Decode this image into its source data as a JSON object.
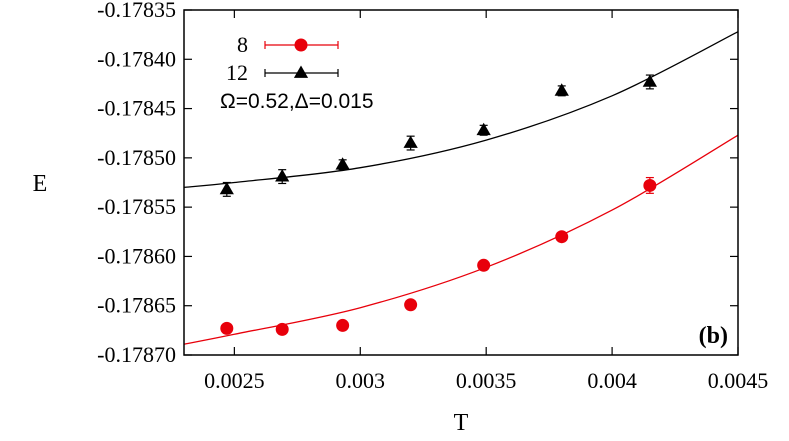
{
  "chart_data": {
    "type": "scatter",
    "xlabel": "T",
    "ylabel": "E",
    "xlim": [
      0.0023,
      0.0045
    ],
    "ylim": [
      -0.1787,
      -0.17835
    ],
    "x_ticks": [
      "0.0025",
      "0.003",
      "0.0035",
      "0.004",
      "0.0045"
    ],
    "x_tick_values": [
      0.0025,
      0.003,
      0.0035,
      0.004,
      0.0045
    ],
    "y_ticks": [
      "-0.17835",
      "-0.17840",
      "-0.17845",
      "-0.17850",
      "-0.17855",
      "-0.17860",
      "-0.17865",
      "-0.17870"
    ],
    "y_tick_values": [
      -0.17835,
      -0.1784,
      -0.17845,
      -0.1785,
      -0.17855,
      -0.1786,
      -0.17865,
      -0.1787
    ],
    "grid": false,
    "legend_position": "top-left",
    "annotation": "Ω=0.52,Δ=0.015",
    "panel_label": "(b)",
    "series": [
      {
        "name": "8",
        "marker": "circle",
        "color": "#e8000b",
        "x": [
          0.00247,
          0.00269,
          0.00293,
          0.0032,
          0.00349,
          0.0038,
          0.00415
        ],
        "y": [
          -0.178673,
          -0.178674,
          -0.17867,
          -0.178649,
          -0.178609,
          -0.17858,
          -0.178528
        ],
        "yerr": [
          3e-06,
          3e-06,
          3e-06,
          3e-06,
          3e-06,
          3e-06,
          8e-06
        ]
      },
      {
        "name": "12",
        "marker": "triangle",
        "color": "#000000",
        "x": [
          0.00247,
          0.00269,
          0.00293,
          0.0032,
          0.00349,
          0.0038,
          0.00415
        ],
        "y": [
          -0.178532,
          -0.178519,
          -0.178507,
          -0.178485,
          -0.178472,
          -0.178432,
          -0.178423
        ],
        "yerr": [
          7e-06,
          7e-06,
          5e-06,
          7e-06,
          5e-06,
          5e-06,
          7e-06
        ]
      }
    ],
    "fits": [
      {
        "series": "8",
        "color": "#e8000b",
        "x": [
          0.0023,
          0.0025,
          0.003,
          0.0035,
          0.004,
          0.0045
        ],
        "y": [
          -0.178689,
          -0.178679,
          -0.178652,
          -0.178611,
          -0.178553,
          -0.178477
        ]
      },
      {
        "series": "12",
        "color": "#000000",
        "x": [
          0.0023,
          0.0025,
          0.003,
          0.0035,
          0.004,
          0.0045
        ],
        "y": [
          -0.17853,
          -0.178525,
          -0.17851,
          -0.178482,
          -0.178437,
          -0.178372
        ]
      }
    ]
  }
}
